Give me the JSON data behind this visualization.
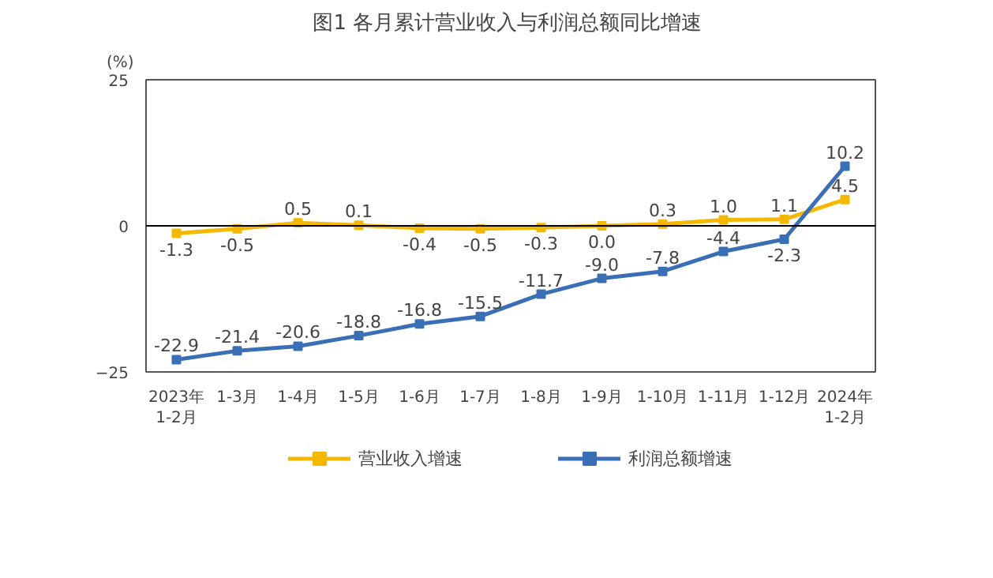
{
  "chart_data": {
    "type": "line",
    "title": "图1  各月累计营业收入与利润总额同比增速",
    "ylabel": "(%)",
    "categories": [
      "2023年\n1-2月",
      "1-3月",
      "1-4月",
      "1-5月",
      "1-6月",
      "1-7月",
      "1-8月",
      "1-9月",
      "1-10月",
      "1-11月",
      "1-12月",
      "2024年\n1-2月"
    ],
    "series": [
      {
        "name": "营业收入增速",
        "color": "#f5b800",
        "values": [
          -1.3,
          -0.5,
          0.5,
          0.1,
          -0.4,
          -0.5,
          -0.3,
          0.0,
          0.3,
          1.0,
          1.1,
          4.5
        ],
        "value_labels": [
          "-1.3",
          "-0.5",
          "0.5",
          "0.1",
          "-0.4",
          "-0.5",
          "-0.3",
          "0.0",
          "0.3",
          "1.0",
          "1.1",
          "4.5"
        ]
      },
      {
        "name": "利润总额增速",
        "color": "#3a6fb5",
        "values": [
          -22.9,
          -21.4,
          -20.6,
          -18.8,
          -16.8,
          -15.5,
          -11.7,
          -9.0,
          -7.8,
          -4.4,
          -2.3,
          10.2
        ],
        "value_labels": [
          "-22.9",
          "-21.4",
          "-20.6",
          "-18.8",
          "-16.8",
          "-15.5",
          "-11.7",
          "-9.0",
          "-7.8",
          "-4.4",
          "-2.3",
          "10.2"
        ]
      }
    ],
    "ylim": [
      -25,
      25
    ],
    "yticks": [
      -25,
      0,
      25
    ],
    "ref_lines": [
      {
        "axis": "y",
        "value": 0,
        "color": "#000000"
      }
    ],
    "legend": "bottom",
    "marker": "square",
    "grid": false
  }
}
